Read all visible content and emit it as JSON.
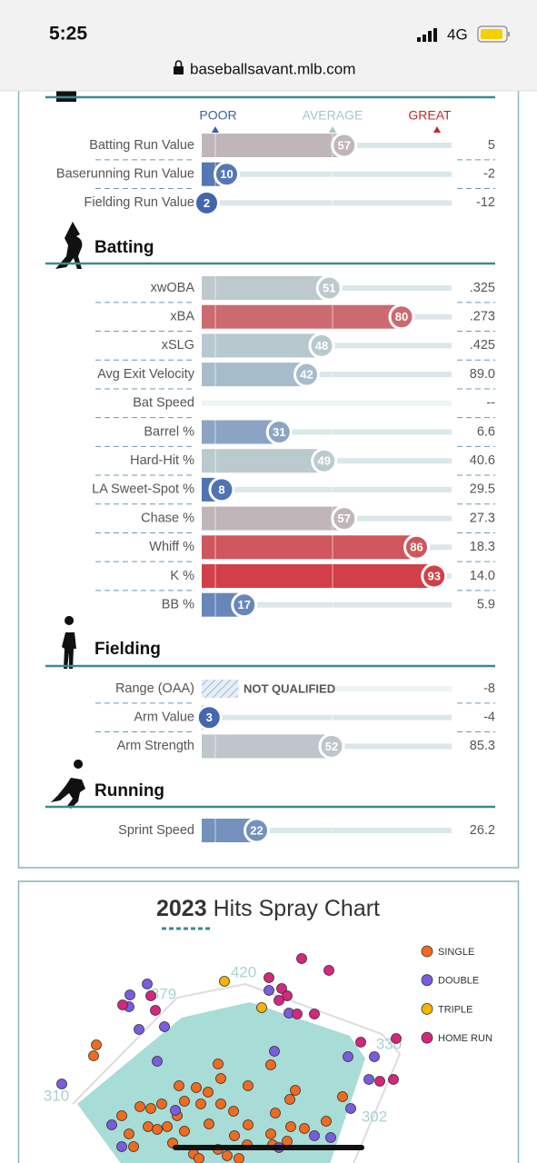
{
  "status_bar": {
    "time": "5:25",
    "network": "4G"
  },
  "browser": {
    "url": "baseballsavant.mlb.com"
  },
  "percentile_rankings": {
    "scale": {
      "poor": "POOR",
      "average": "AVERAGE",
      "great": "GREAT"
    },
    "sections": [
      {
        "rows": [
          {
            "label": "Batting Run Value",
            "percentile": 57,
            "value": "5"
          },
          {
            "label": "Baserunning Run Value",
            "percentile": 10,
            "value": "-2"
          },
          {
            "label": "Fielding Run Value",
            "percentile": 2,
            "value": "-12"
          }
        ]
      },
      {
        "title": "Batting",
        "rows": [
          {
            "label": "xwOBA",
            "percentile": 51,
            "value": ".325"
          },
          {
            "label": "xBA",
            "percentile": 80,
            "value": ".273"
          },
          {
            "label": "xSLG",
            "percentile": 48,
            "value": ".425"
          },
          {
            "label": "Avg Exit Velocity",
            "percentile": 42,
            "value": "89.0"
          },
          {
            "label": "Bat Speed",
            "value": "--"
          },
          {
            "label": "Barrel %",
            "percentile": 31,
            "value": "6.6"
          },
          {
            "label": "Hard-Hit %",
            "percentile": 49,
            "value": "40.6"
          },
          {
            "label": "LA Sweet-Spot %",
            "percentile": 8,
            "value": "29.5"
          },
          {
            "label": "Chase %",
            "percentile": 57,
            "value": "27.3"
          },
          {
            "label": "Whiff %",
            "percentile": 86,
            "value": "18.3"
          },
          {
            "label": "K %",
            "percentile": 93,
            "value": "14.0"
          },
          {
            "label": "BB %",
            "percentile": 17,
            "value": "5.9"
          }
        ]
      },
      {
        "title": "Fielding",
        "rows": [
          {
            "label": "Range (OAA)",
            "status": "NOT QUALIFIED",
            "value": "-8"
          },
          {
            "label": "Arm Value",
            "percentile": 3,
            "value": "-4"
          },
          {
            "label": "Arm Strength",
            "percentile": 52,
            "value": "85.3"
          }
        ]
      },
      {
        "title": "Running",
        "rows": [
          {
            "label": "Sprint Speed",
            "percentile": 22,
            "value": "26.2"
          }
        ]
      }
    ]
  },
  "chart_data": {
    "type": "scatter",
    "title_year": "2023",
    "title": "Hits Spray Chart",
    "annotations": [
      "310",
      "379",
      "420",
      "330",
      "302"
    ],
    "xlim": [
      -230,
      230
    ],
    "ylim": [
      0,
      380
    ],
    "series": [
      {
        "name": "SINGLE",
        "color": "#f26b1d",
        "x": [
          -137,
          -134,
          0,
          58,
          -43,
          -24,
          -37,
          -62,
          3,
          -11,
          33,
          85,
          79,
          137,
          -86,
          -74,
          -19,
          3,
          17,
          -45,
          -106,
          -77,
          -56,
          -98,
          -67,
          -37,
          -10,
          33,
          63,
          58,
          80,
          95,
          119,
          -93,
          -50,
          18,
          32,
          0,
          -27,
          60,
          76,
          10,
          23,
          -21
        ],
        "values": [
          178,
          190,
          169,
          168,
          145,
          143,
          128,
          125,
          153,
          138,
          145,
          140,
          130,
          133,
          122,
          120,
          125,
          125,
          117,
          112,
          112,
          100,
          100,
          92,
          97,
          95,
          103,
          102,
          115,
          92,
          100,
          98,
          106,
          78,
          82,
          90,
          80,
          75,
          70,
          80,
          84,
          68,
          65,
          65
        ]
      },
      {
        "name": "DOUBLE",
        "color": "#7b5ce0",
        "x": [
          -172,
          -78,
          -98,
          -59,
          -87,
          -67,
          -97,
          62,
          78,
          56,
          143,
          166,
          172,
          146,
          -117,
          -106,
          -47,
          106,
          67,
          124
        ],
        "values": [
          147,
          257,
          232,
          210,
          207,
          172,
          245,
          183,
          225,
          250,
          177,
          152,
          177,
          120,
          102,
          78,
          118,
          90,
          77,
          88
        ]
      },
      {
        "name": "TRIPLE",
        "color": "#f5b400",
        "x": [
          7,
          48
        ],
        "values": [
          260,
          231
        ]
      },
      {
        "name": "HOME RUN",
        "color": "#d6267e",
        "x": [
          -105,
          -74,
          -69,
          92,
          122,
          56,
          70,
          76,
          67,
          87,
          106,
          157,
          196,
          178,
          193
        ],
        "values": [
          234,
          244,
          228,
          285,
          272,
          264,
          252,
          244,
          239,
          224,
          224,
          193,
          197,
          150,
          152
        ]
      }
    ]
  }
}
